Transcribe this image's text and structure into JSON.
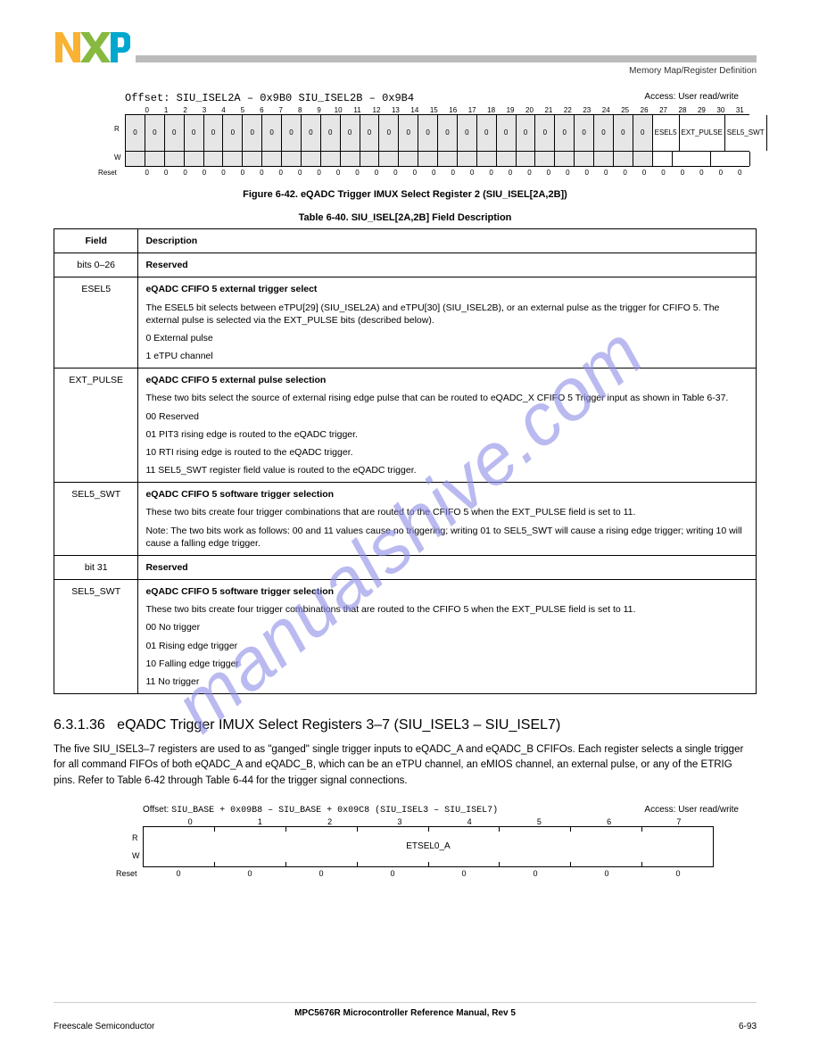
{
  "logo": {
    "n_color": "#f9b233",
    "x_color": "#87b940",
    "p_color": "#00a7cf"
  },
  "header_label": "Memory Map/Register Definition",
  "register1": {
    "offset_label": "Offset:",
    "variants": [
      {
        "name": "SIU_ISEL2A",
        "offset": "0x9B0"
      },
      {
        "name": "SIU_ISEL2B",
        "offset": "0x9B4"
      }
    ],
    "access_line": "Access: User read/write",
    "bit_nums_top": [
      "0",
      "1",
      "2",
      "3",
      "4",
      "5",
      "6",
      "7",
      "8",
      "9",
      "10",
      "11",
      "12",
      "13",
      "14",
      "15",
      "16",
      "17",
      "18",
      "19",
      "20",
      "21",
      "22",
      "23",
      "24",
      "25",
      "26",
      "27",
      "28",
      "29",
      "30",
      "31"
    ],
    "row_label_R": "R",
    "row_label_W": "W",
    "reserved_cells": 27,
    "reserved_fill": "#e6e6e6",
    "fields": [
      {
        "bits": 1,
        "label": "ESEL5"
      },
      {
        "bits": 2,
        "label": "EXT_PULSE"
      },
      {
        "bits": 2,
        "label": "SEL5_SWT"
      }
    ],
    "reset_label": "Reset",
    "reset_values": [
      "0",
      "0",
      "0",
      "0",
      "0",
      "0",
      "0",
      "0",
      "0",
      "0",
      "0",
      "0",
      "0",
      "0",
      "0",
      "0",
      "0",
      "0",
      "0",
      "0",
      "0",
      "0",
      "0",
      "0",
      "0",
      "0",
      "0",
      "0",
      "0",
      "0",
      "0",
      "0"
    ]
  },
  "figure_cap": "Figure 6-42. eQADC Trigger IMUX Select Register 2 (SIU_ISEL[2A,2B])",
  "table_cap": "Table 6-40. SIU_ISEL[2A,2B] Field Description",
  "def_rows": [
    {
      "field": "bits 0–26",
      "desc": "Reserved"
    },
    {
      "field": "ESEL5",
      "desc": "eQADC CFIFO 5 external trigger select\nThe ESEL5 bit selects between eTPU[29] (SIU_ISEL2A) and eTPU[30] (SIU_ISEL2B), or an external pulse as the trigger for CFIFO 5. The external pulse is selected via the EXT_PULSE bits (described below).\n0 External pulse\n1 eTPU channel"
    },
    {
      "field": "EXT_PULSE",
      "desc": "eQADC CFIFO 5 external pulse selection\nThese two bits select the source of external rising edge pulse that can be routed to eQADC_X CFIFO 5 Trigger input as shown in Table 6-37.\n00 Reserved\n01 PIT3 rising edge is routed to the eQADC trigger.\n10 RTI rising edge is routed to the eQADC trigger.\n11 SEL5_SWT register field value is routed to the eQADC trigger."
    },
    {
      "field": "SEL5_SWT",
      "desc": "eQADC CFIFO 5 software trigger selection\nThese two bits create four trigger combinations that are routed to the CFIFO 5 when the EXT_PULSE field is set to 11.\nNote: The two bits work as follows: 00 and 11 values cause no triggering; writing 01 to SEL5_SWT will cause a rising edge trigger; writing 10 will cause a falling edge trigger."
    },
    {
      "field": "bit 31",
      "desc": "Reserved"
    },
    {
      "field": "SEL5_SWT",
      "desc": "eQADC CFIFO 5 software trigger selection\nThese two bits create four trigger combinations that are routed to the CFIFO 5 when the EXT_PULSE field is set to 11.\n00 No trigger\n01 Rising edge trigger\n10 Falling edge trigger\n11 No trigger"
    }
  ],
  "section": {
    "num": "6.3.1.36",
    "title": "eQADC Trigger IMUX Select Registers 3–7 (SIU_ISEL3 – SIU_ISEL7)",
    "body": "The five SIU_ISEL3–7 registers are used to as \"ganged\" single trigger inputs to eQADC_A and eQADC_B CFIFOs. Each register selects a single trigger for all command FIFOs of both eQADC_A and eQADC_B, which can be an eTPU channel, an eMIOS channel, an external pulse, or any of the ETRIG pins. Refer to Table 6-42 through Table 6-44 for the trigger signal connections."
  },
  "register2": {
    "offset_label": "Offset:",
    "offset_value": "SIU_BASE + 0x09B8 – SIU_BASE + 0x09C8   (SIU_ISEL3 – SIU_ISEL7)",
    "access_line": "Access: User read/write",
    "bit_nums_top": [
      "0",
      "1",
      "2",
      "3",
      "4",
      "5",
      "6",
      "7"
    ],
    "row_label_R": "R",
    "row_label_W": "W",
    "field_label": "ETSEL0_A",
    "reset_label": "Reset",
    "reset_values": [
      "0",
      "0",
      "0",
      "0",
      "0",
      "0",
      "0",
      "0"
    ]
  },
  "watermark": "manualshive.com",
  "footer": {
    "title": "MPC5676R Microcontroller Reference Manual, Rev 5",
    "left": "Freescale Semiconductor",
    "right": "6-93"
  }
}
